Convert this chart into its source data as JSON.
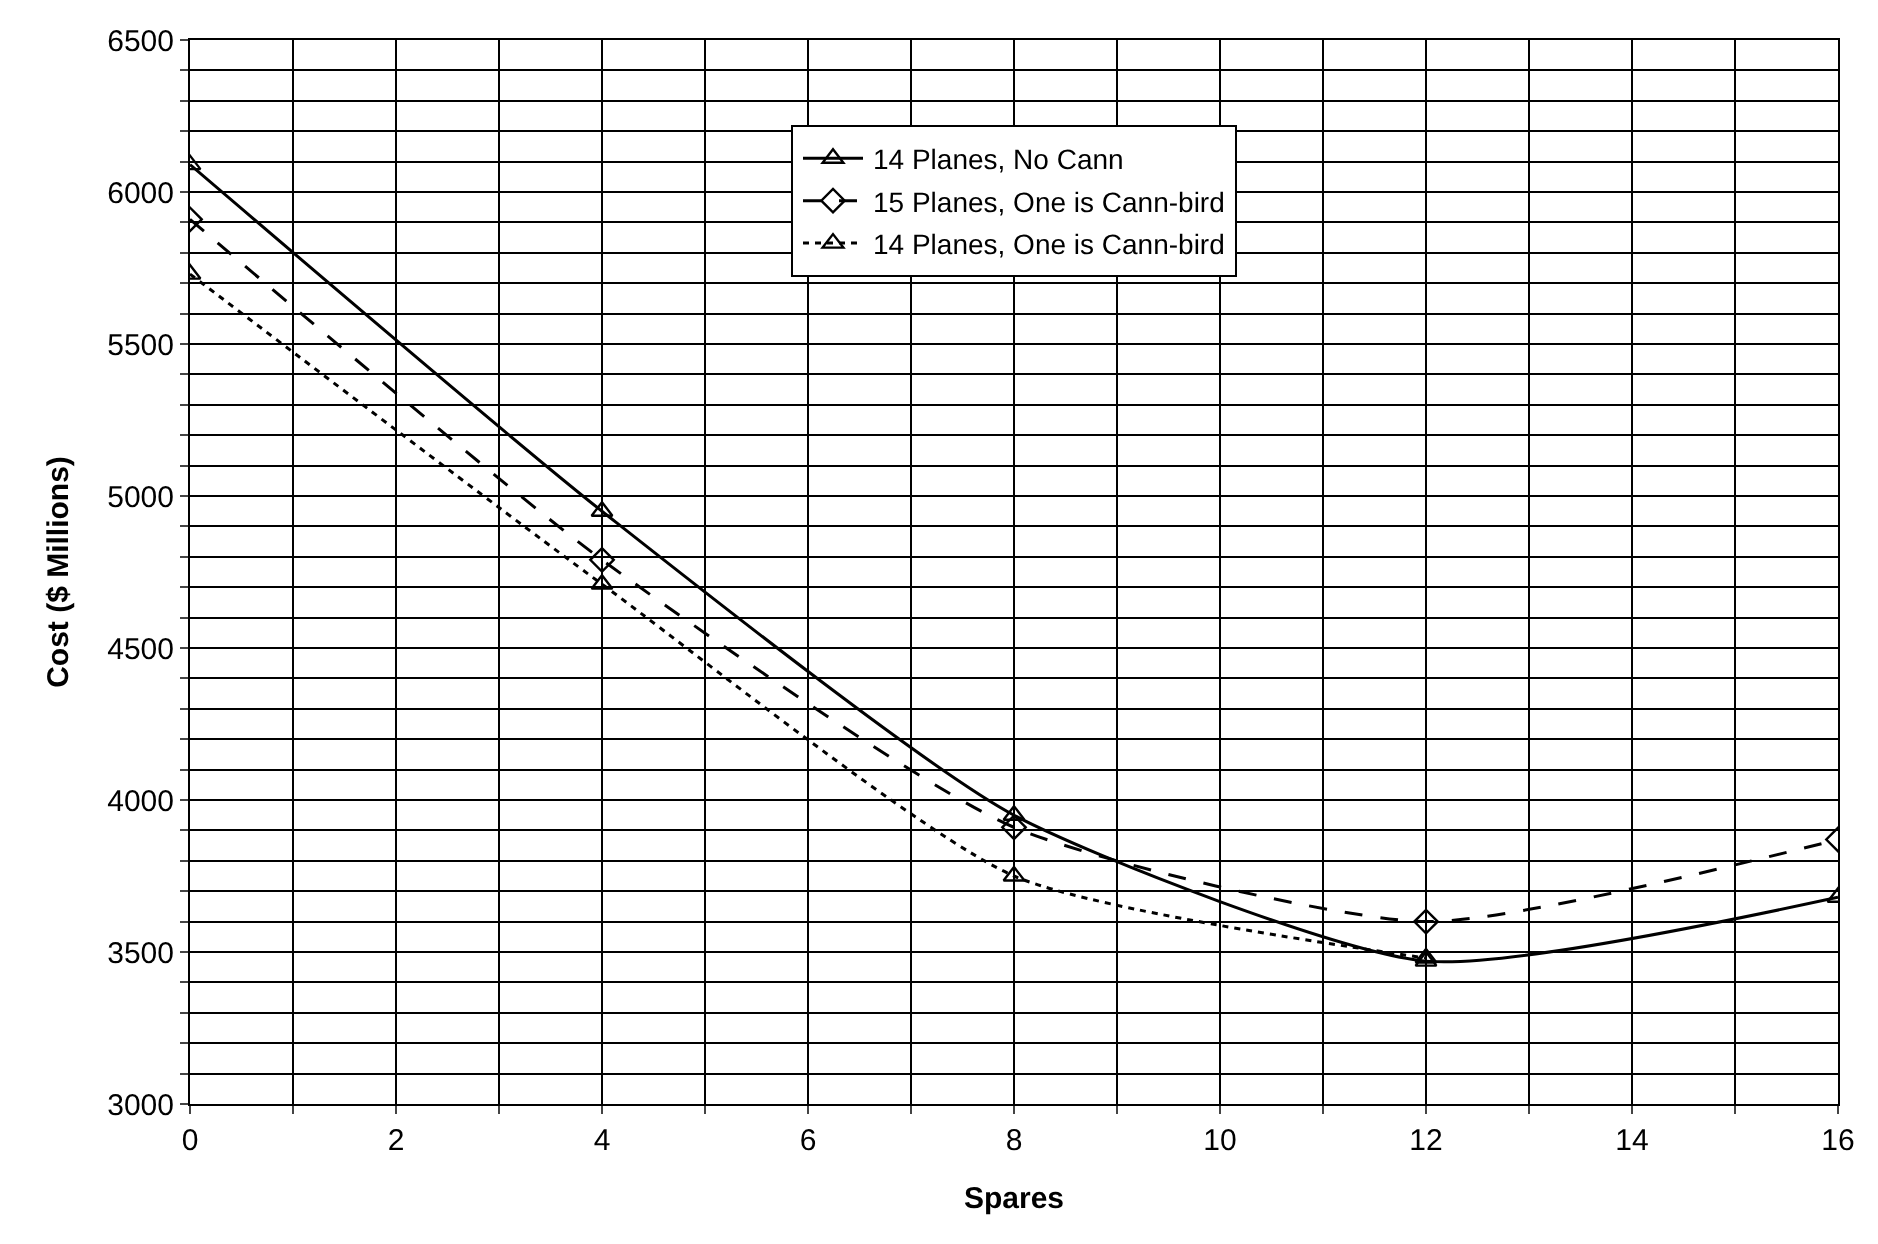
{
  "chart_data": {
    "type": "line",
    "xlabel": "Spares",
    "ylabel": "Cost ($ Millions)",
    "x": [
      0,
      4,
      8,
      12,
      16
    ],
    "series": [
      {
        "name": "14 Planes, No Cann",
        "color": "#000000",
        "values": [
          6090,
          4950,
          3950,
          3470,
          3680
        ],
        "marker": "triangle",
        "line_style": "solid"
      },
      {
        "name": "15 Planes, One is Cann-bird",
        "color": "#000000",
        "values": [
          5910,
          4790,
          3910,
          3600,
          3870
        ],
        "marker": "diamond",
        "line_style": "dashed"
      },
      {
        "name": "14 Planes, One is Cann-bird",
        "color": "#000000",
        "values": [
          5730,
          4710,
          3750,
          3480,
          null
        ],
        "marker": "triangle",
        "line_style": "dotted"
      }
    ],
    "xlim": [
      0,
      16
    ],
    "xticks": [
      0,
      {
        "value": 1,
        "label": null
      },
      2,
      {
        "value": 3,
        "label": null
      },
      4,
      {
        "value": 5,
        "label": null
      },
      6,
      {
        "value": 7,
        "label": null
      },
      8,
      {
        "value": 9,
        "label": null
      },
      10,
      {
        "value": 11,
        "label": null
      },
      12,
      {
        "value": 13,
        "label": null
      },
      14,
      {
        "value": 15,
        "label": null
      },
      16
    ],
    "ylim": [
      3000,
      6500
    ],
    "yticks": [
      3000,
      {
        "value": 3100,
        "label": null
      },
      {
        "value": 3200,
        "label": null
      },
      {
        "value": 3300,
        "label": null
      },
      {
        "value": 3400,
        "label": null
      },
      3500,
      {
        "value": 3600,
        "label": null
      },
      {
        "value": 3700,
        "label": null
      },
      {
        "value": 3800,
        "label": null
      },
      {
        "value": 3900,
        "label": null
      },
      4000,
      {
        "value": 4100,
        "label": null
      },
      {
        "value": 4200,
        "label": null
      },
      {
        "value": 4300,
        "label": null
      },
      {
        "value": 4400,
        "label": null
      },
      4500,
      {
        "value": 4600,
        "label": null
      },
      {
        "value": 4700,
        "label": null
      },
      {
        "value": 4800,
        "label": null
      },
      {
        "value": 4900,
        "label": null
      },
      5000,
      {
        "value": 5100,
        "label": null
      },
      {
        "value": 5200,
        "label": null
      },
      {
        "value": 5300,
        "label": null
      },
      {
        "value": 5400,
        "label": null
      },
      5500,
      {
        "value": 5600,
        "label": null
      },
      {
        "value": 5700,
        "label": null
      },
      {
        "value": 5800,
        "label": null
      },
      {
        "value": 5900,
        "label": null
      },
      6000,
      {
        "value": 6100,
        "label": null
      },
      {
        "value": 6200,
        "label": null
      },
      {
        "value": 6300,
        "label": null
      },
      {
        "value": 6400,
        "label": null
      },
      6500
    ],
    "grid": true,
    "legend": "top"
  }
}
